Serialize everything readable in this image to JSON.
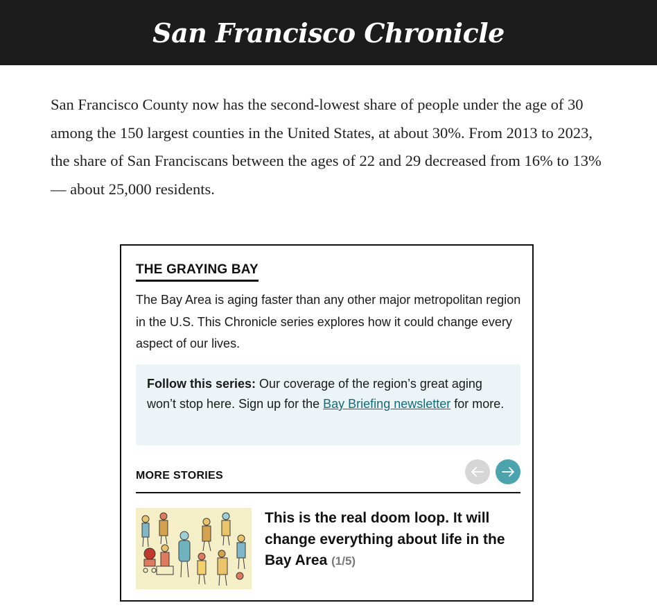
{
  "masthead": {
    "logo_text": "San Francisco Chronicle"
  },
  "article": {
    "paragraph": "San Francisco County now has the second-lowest share of people under the age of 30 among the 150 largest counties in the United States, at about 30%. From 2013 to 2023, the share of San Franciscans between the ages of 22 and 29 decreased from 16% to 13% — about 25,000 residents."
  },
  "series_box": {
    "title": "THE GRAYING BAY",
    "description": "The Bay Area is aging faster than any other major metropolitan region in the U.S. This Chronicle series explores how it could change every aspect of our lives.",
    "follow": {
      "lead": "Follow this series:",
      "text_before": " Our coverage of the region’s great aging won’t stop here. Sign up for the ",
      "link_text": "Bay Briefing newsletter",
      "text_after": " for more."
    },
    "more_stories_label": "MORE STORIES",
    "prev_icon": "arrow-left-icon",
    "next_icon": "arrow-right-icon",
    "story": {
      "title": "This is the real doom loop. It will change everything about life in the Bay Area",
      "count": "(1/5)",
      "thumbnail": "illustration-crowd-aging"
    }
  },
  "colors": {
    "masthead_bg": "#1c1c1c",
    "follow_bg": "#ecf4f7",
    "link": "#146b78",
    "next_button": "#4aa3ad",
    "prev_button": "#d6d6d6"
  }
}
